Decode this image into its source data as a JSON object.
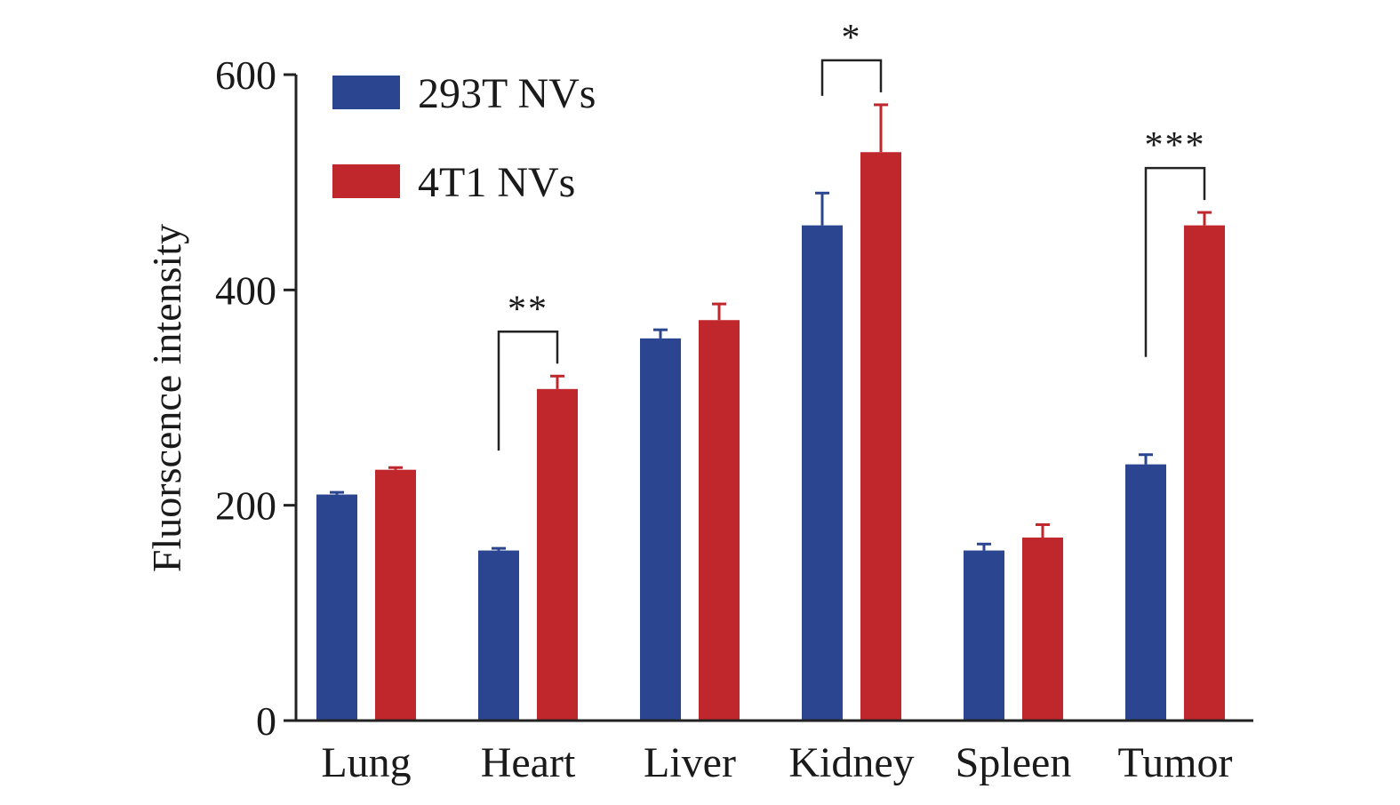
{
  "chart_data": {
    "type": "bar",
    "title": "",
    "xlabel": "",
    "ylabel": "Fluorscence intensity",
    "ylim": [
      0,
      600
    ],
    "yticks": [
      0,
      200,
      400,
      600
    ],
    "categories": [
      "Lung",
      "Heart",
      "Liver",
      "Kidney",
      "Spleen",
      "Tumor"
    ],
    "series": [
      {
        "name": "293T NVs",
        "color": "#2b4590",
        "values": [
          210,
          158,
          355,
          460,
          158,
          238
        ],
        "errors": [
          2,
          2,
          8,
          30,
          6,
          9
        ]
      },
      {
        "name": "4T1 NVs",
        "color": "#c0272d",
        "values": [
          233,
          308,
          372,
          528,
          170,
          460
        ],
        "errors": [
          2,
          12,
          15,
          44,
          12,
          12
        ]
      }
    ],
    "legend": {
      "placement": "top-left",
      "items": [
        {
          "label": "293T NVs",
          "color": "#2b4590"
        },
        {
          "label": "4T1 NVs",
          "color": "#c0272d"
        }
      ]
    },
    "annotations": [
      {
        "category": "Heart",
        "label": "**"
      },
      {
        "category": "Kidney",
        "label": "*"
      },
      {
        "category": "Tumor",
        "label": "***"
      }
    ]
  }
}
